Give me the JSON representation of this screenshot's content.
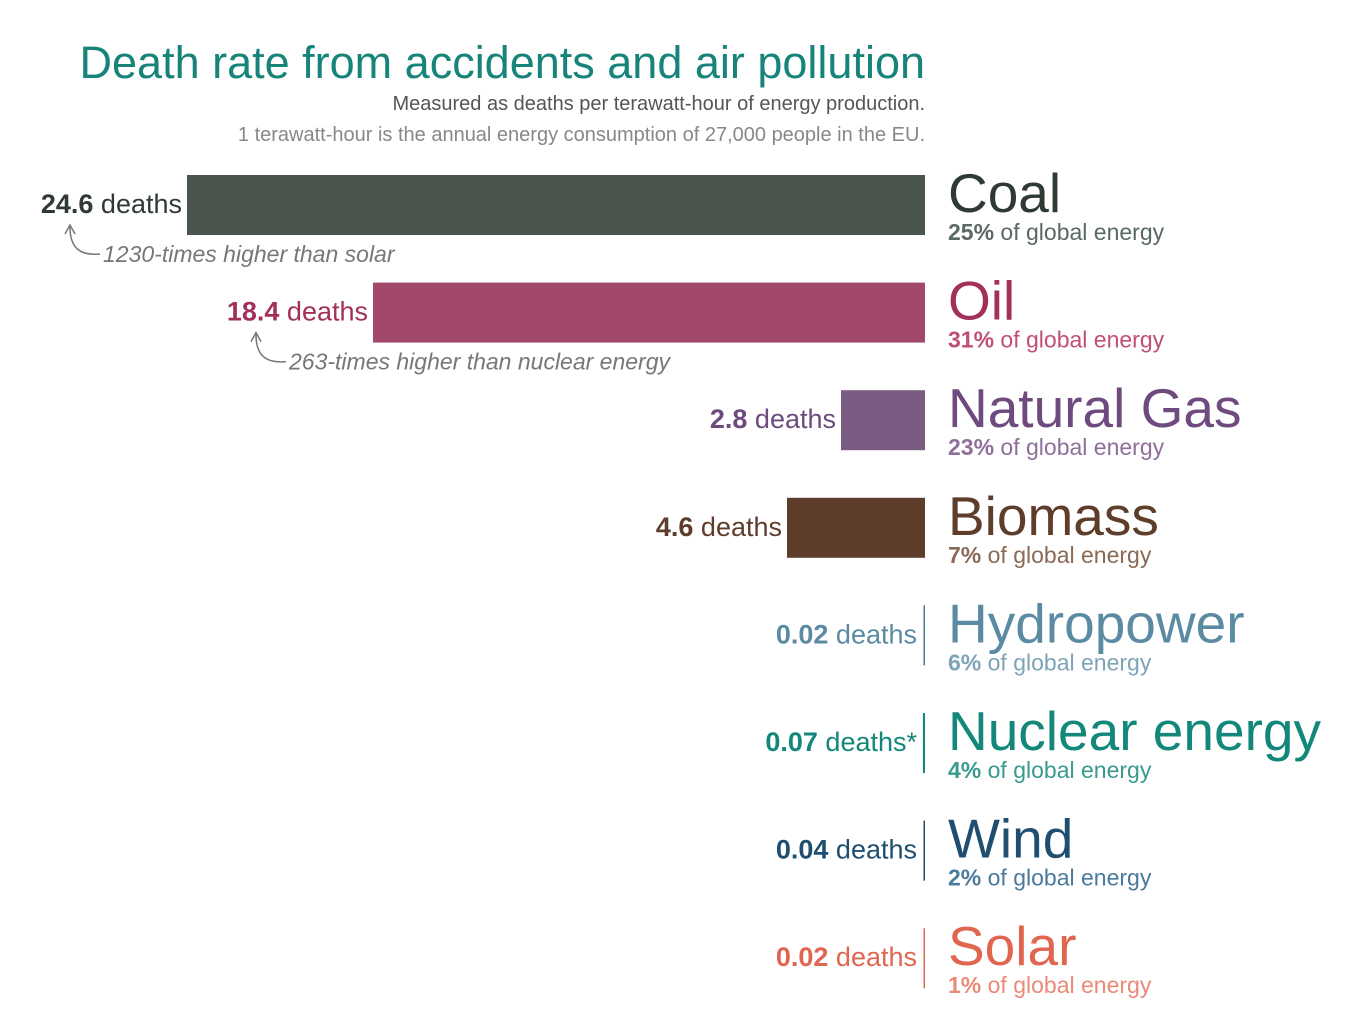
{
  "chart_data": {
    "type": "bar",
    "title": "Death rate from accidents and air pollution",
    "subtitle": "Measured as deaths per terawatt-hour of energy production.",
    "note": "1 terawatt-hour is the annual energy consumption of 27,000 people in the EU.",
    "categories": [
      "Coal",
      "Oil",
      "Natural Gas",
      "Biomass",
      "Hydropower",
      "Nuclear energy",
      "Wind",
      "Solar"
    ],
    "values": [
      24.6,
      18.4,
      2.8,
      4.6,
      0.02,
      0.07,
      0.04,
      0.02
    ],
    "value_labels": [
      "24.6 deaths",
      "18.4 deaths",
      "2.8 deaths",
      "4.6 deaths",
      "0.02 deaths",
      "0.07 deaths*",
      "0.04 deaths",
      "0.02 deaths"
    ],
    "share_labels": [
      "25% of global energy",
      "31% of global energy",
      "23% of global energy",
      "7% of global energy",
      "6% of global energy",
      "4% of global energy",
      "2% of global energy",
      "1% of global energy"
    ],
    "annotations": [
      "1230-times higher than solar",
      "263-times higher than nuclear energy",
      null,
      null,
      null,
      null,
      null,
      null
    ],
    "colors": [
      "#4a564d",
      "#a2486a",
      "#7a5c82",
      "#5e3d2b",
      "#4c7d96",
      "#12877a",
      "#1f4e70",
      "#e06650"
    ],
    "label_colors": [
      "#2f3a33",
      "#a2305a",
      "#6e4a7e",
      "#5e3d2b",
      "#5b8ba3",
      "#12877a",
      "#1f4e70",
      "#e06650"
    ],
    "share_colors": [
      "#5a6a60",
      "#c04f78",
      "#8f6f9a",
      "#8a6a55",
      "#7ea4b7",
      "#3a9a8e",
      "#4a7a9c",
      "#ea8a78"
    ]
  }
}
